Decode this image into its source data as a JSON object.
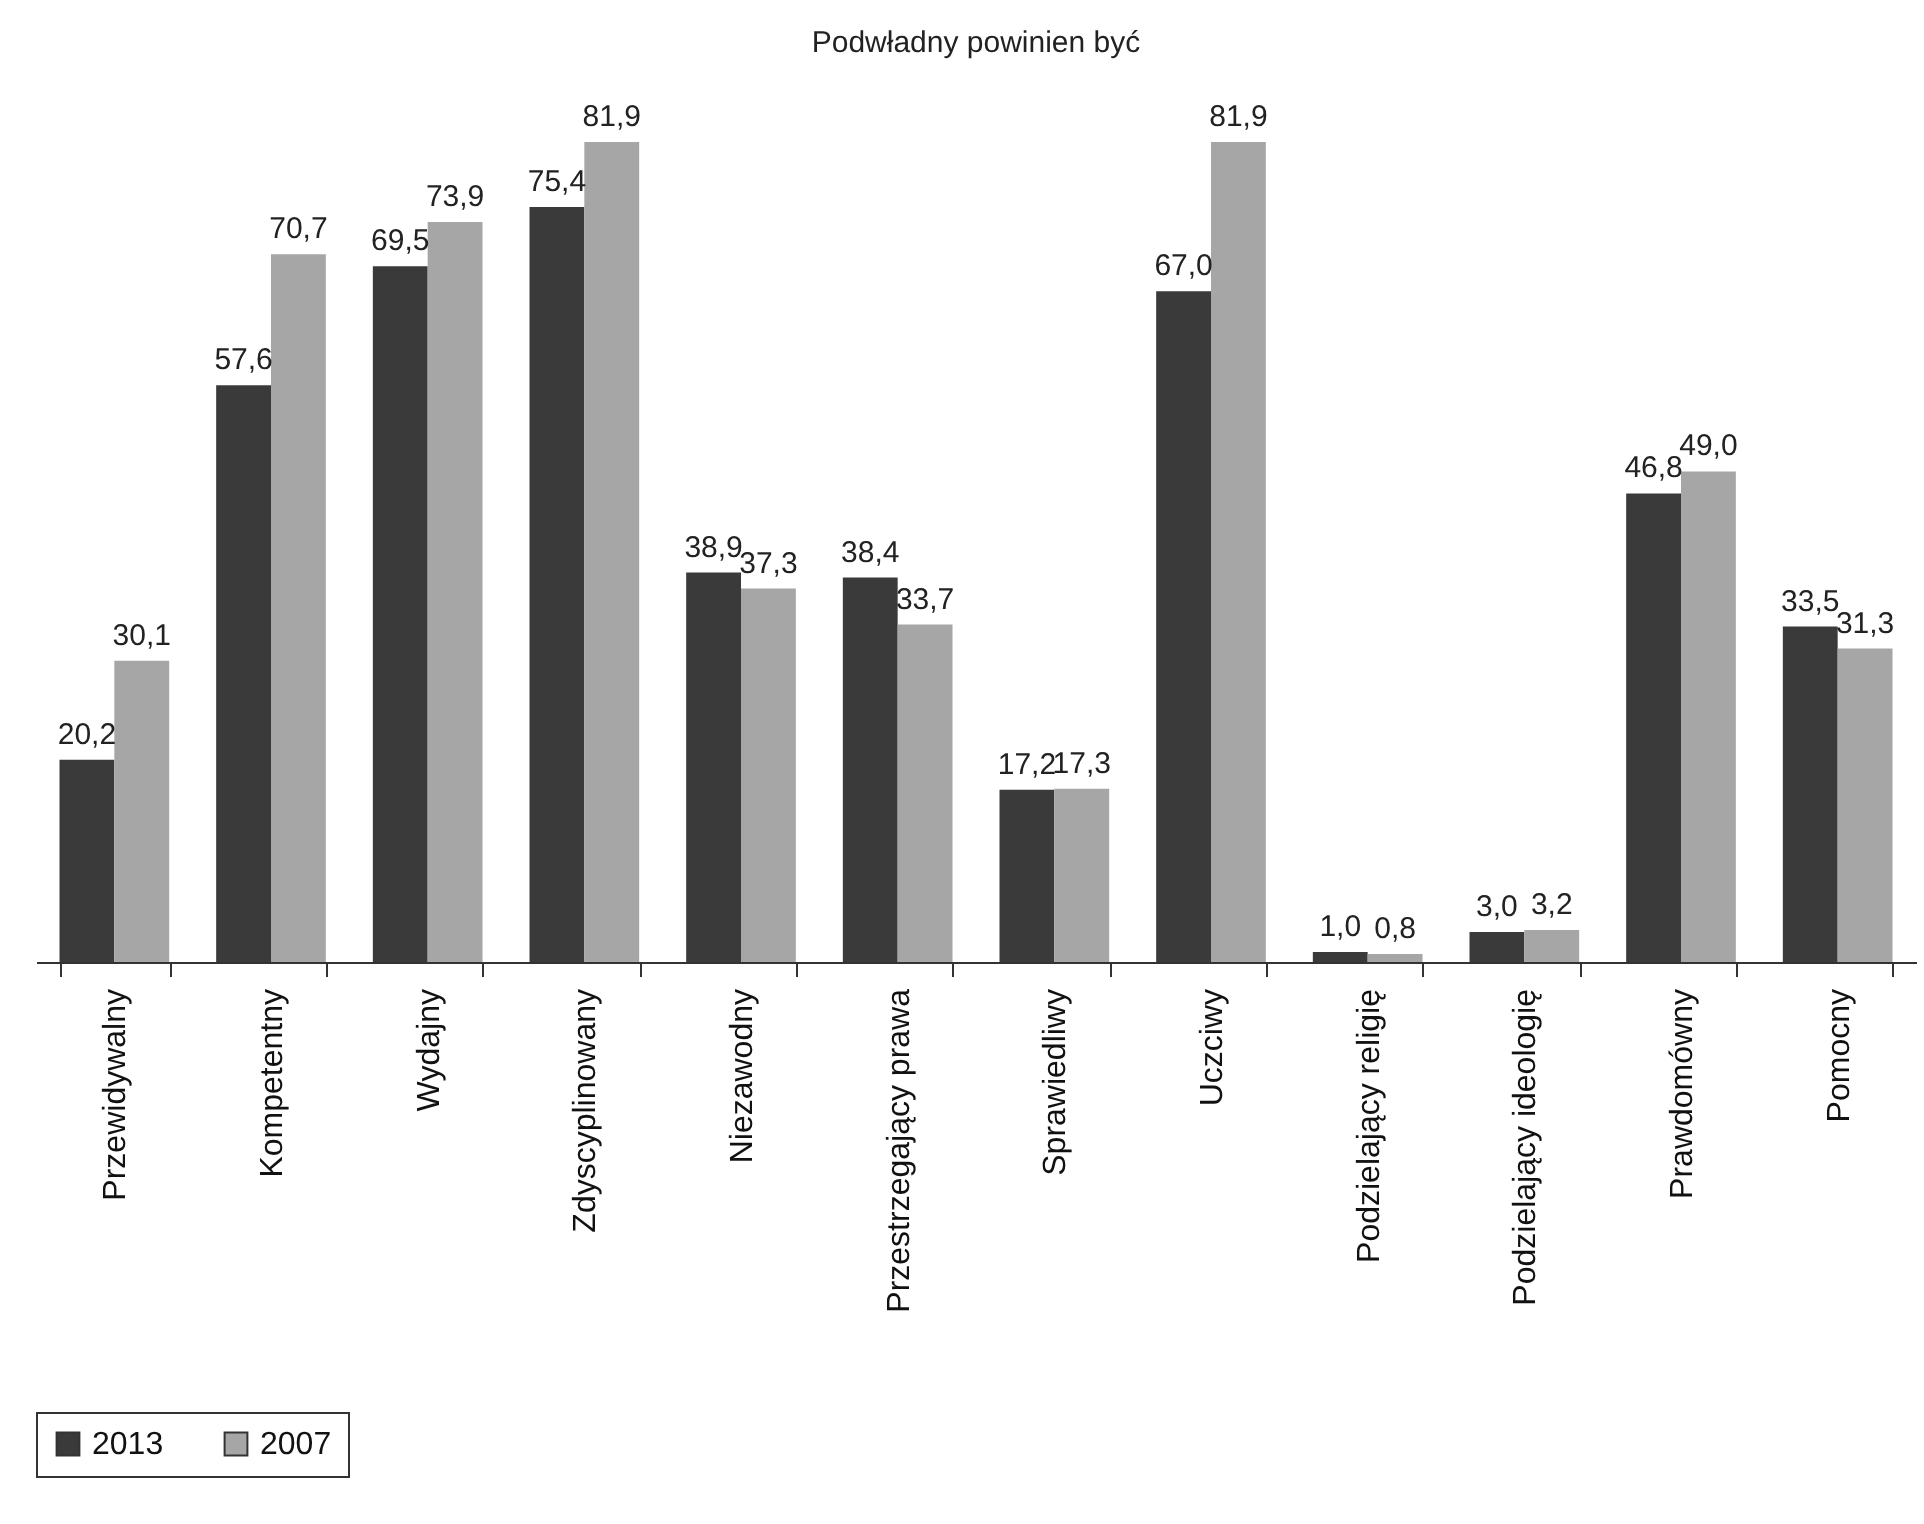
{
  "chart_data": {
    "type": "bar",
    "title": "Podwładny powinien być",
    "categories": [
      "Przewidywalny",
      "Kompetentny",
      "Wydajny",
      "Zdyscyplinowany",
      "Niezawodny",
      "Przestrzegający prawa",
      "Sprawiedliwy",
      "Uczciwy",
      "Podzielający religię",
      "Podzielający ideologię",
      "Prawdomówny",
      "Pomocny"
    ],
    "series": [
      {
        "name": "2013",
        "color": "#3a3a3a",
        "values": [
          20.2,
          57.6,
          69.5,
          75.4,
          38.9,
          38.4,
          17.2,
          67.0,
          1.0,
          3.0,
          46.8,
          33.5
        ],
        "value_labels": [
          "20,2",
          "57,6",
          "69,5",
          "75,4",
          "38,9",
          "38,4",
          "17,2",
          "67,0",
          "1,0",
          "3,0",
          "46,8",
          "33,5"
        ]
      },
      {
        "name": "2007",
        "color": "#a6a6a6",
        "values": [
          30.1,
          70.7,
          73.9,
          81.9,
          37.3,
          33.7,
          17.3,
          81.9,
          0.8,
          3.2,
          49.0,
          31.3
        ],
        "value_labels": [
          "30,1",
          "70,7",
          "73,9",
          "81,9",
          "37,3",
          "33,7",
          "17,3",
          "81,9",
          "0,8",
          "3,2",
          "49,0",
          "31,3"
        ]
      }
    ],
    "legend": "bottom"
  }
}
